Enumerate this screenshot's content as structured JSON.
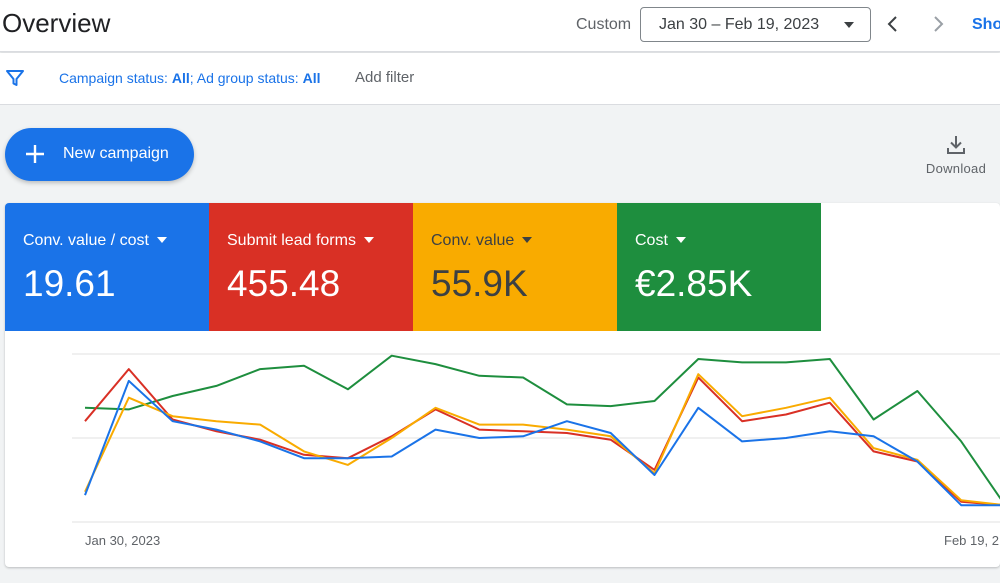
{
  "header": {
    "title": "Overview",
    "custom_label": "Custom",
    "date_range": "Jan 30 – Feb 19, 2023",
    "show_link": "Sho"
  },
  "filterbar": {
    "campaign_status_label": "Campaign status: ",
    "campaign_status_value": "All",
    "separator": "; ",
    "ad_group_status_label": "Ad group status: ",
    "ad_group_status_value": "All",
    "add_filter": "Add filter"
  },
  "actions": {
    "new_campaign": "New campaign",
    "download": "Download"
  },
  "scorecards": [
    {
      "label": "Conv. value / cost",
      "value": "19.61",
      "color": "#1a73e8",
      "text_color": "#ffffff"
    },
    {
      "label": "Submit lead forms",
      "value": "455.48",
      "color": "#d93025",
      "text_color": "#ffffff"
    },
    {
      "label": "Conv. value",
      "value": "55.9K",
      "color": "#f9ab00",
      "text_color": "#3c4043"
    },
    {
      "label": "Cost",
      "value": "€2.85K",
      "color": "#1e8e3e",
      "text_color": "#ffffff"
    }
  ],
  "icons": {
    "filter": "filter-icon",
    "prev": "chevron-left-icon",
    "next": "chevron-right-icon",
    "plus": "plus-icon",
    "download": "download-icon"
  },
  "chart_data": {
    "type": "line",
    "x_tick_labels": [
      "Jan 30, 2023",
      "Feb 19, 2"
    ],
    "points": 22,
    "ylim": [
      0,
      100
    ],
    "grid": true,
    "series": [
      {
        "color": "#1e8e3e",
        "values": [
          68,
          67,
          75,
          81,
          91,
          93,
          79,
          99,
          94,
          87,
          86,
          70,
          69,
          72,
          97,
          95,
          95,
          97,
          61,
          78,
          48,
          10
        ]
      },
      {
        "color": "#d93025",
        "values": [
          60,
          91,
          61,
          54,
          49,
          40,
          38,
          51,
          67,
          55,
          54,
          53,
          49,
          31,
          86,
          60,
          64,
          71,
          42,
          36,
          12,
          10
        ]
      },
      {
        "color": "#f9ab00",
        "values": [
          18,
          74,
          63,
          60,
          58,
          42,
          34,
          50,
          68,
          58,
          58,
          55,
          51,
          29,
          88,
          63,
          68,
          74,
          44,
          37,
          13,
          10
        ]
      },
      {
        "color": "#1a73e8",
        "values": [
          16,
          84,
          60,
          55,
          48,
          38,
          38,
          39,
          55,
          50,
          51,
          60,
          53,
          28,
          68,
          48,
          50,
          54,
          51,
          36,
          10,
          10
        ]
      }
    ]
  }
}
